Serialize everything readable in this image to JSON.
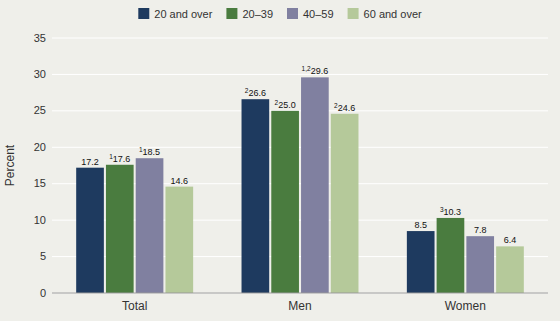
{
  "chart_data": {
    "type": "bar",
    "categories": [
      "Total",
      "Men",
      "Women"
    ],
    "series": [
      {
        "name": "20 and over",
        "color": "#1e3a5f",
        "values": [
          17.2,
          26.6,
          8.5
        ],
        "value_labels": [
          "17.2",
          "26.6",
          "8.5"
        ],
        "superscripts": [
          null,
          "2",
          null
        ]
      },
      {
        "name": "20–39",
        "color": "#4a7c3f",
        "values": [
          17.6,
          25.0,
          10.3
        ],
        "value_labels": [
          "17.6",
          "25.0",
          "10.3"
        ],
        "superscripts": [
          "1",
          "2",
          "3"
        ]
      },
      {
        "name": "40–59",
        "color": "#8080a0",
        "values": [
          18.5,
          29.6,
          7.8
        ],
        "value_labels": [
          "18.5",
          "29.6",
          "7.8"
        ],
        "superscripts": [
          "1",
          "1,2",
          null
        ]
      },
      {
        "name": "60 and over",
        "color": "#b5c99a",
        "values": [
          14.6,
          24.6,
          6.4
        ],
        "value_labels": [
          "14.6",
          "24.6",
          "6.4"
        ],
        "superscripts": [
          null,
          "2",
          null
        ]
      }
    ],
    "ylabel": "Percent",
    "ylim": [
      0,
      35
    ],
    "yticks": [
      0,
      5,
      10,
      15,
      20,
      25,
      30,
      35
    ],
    "grid": true,
    "legend": "top",
    "data_labels": true
  }
}
